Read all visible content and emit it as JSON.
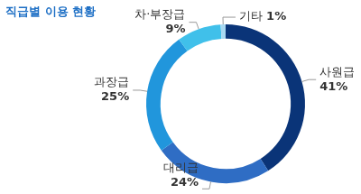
{
  "chart_data": {
    "type": "doughnut",
    "title": "직급별 이용 현황",
    "categories": [
      "사원급",
      "대리급",
      "과장급",
      "차·부장급",
      "기타"
    ],
    "values": [
      41,
      24,
      25,
      9,
      1
    ],
    "value_labels": [
      "41%",
      "24%",
      "25%",
      "9%",
      "1%"
    ],
    "colors": [
      "#0a3478",
      "#2f6dc4",
      "#2196dc",
      "#40c0ea",
      "#a9d9f2"
    ],
    "data_labels": true
  }
}
